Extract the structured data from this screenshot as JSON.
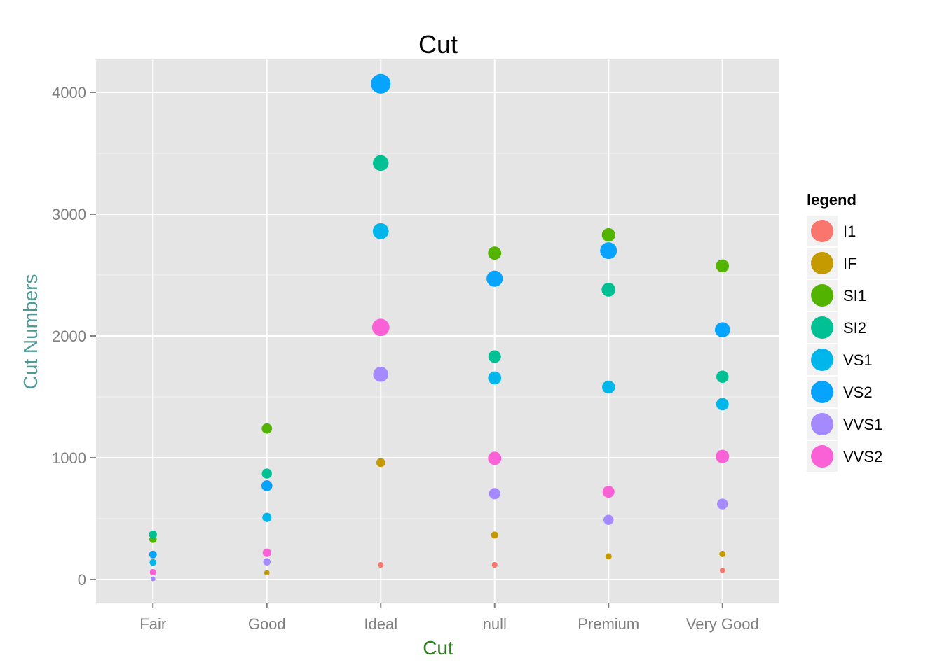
{
  "chart_data": {
    "type": "scatter",
    "title": "Cut",
    "xlabel": "Cut",
    "ylabel": "Cut Numbers",
    "categories": [
      "Fair",
      "Good",
      "Ideal",
      "null",
      "Premium",
      "Very Good"
    ],
    "yticks": [
      0,
      1000,
      2000,
      3000,
      4000
    ],
    "ylim": [
      -190,
      4270
    ],
    "grid": true,
    "legend": {
      "title": "legend",
      "position": "right"
    },
    "xlabel_color": "#2e7d1f",
    "ylabel_color": "#4f9a96",
    "panel_color": "#e5e5e5",
    "series": [
      {
        "name": "I1",
        "color": "#f8766d",
        "values": [
          5,
          55,
          120,
          120,
          190,
          75
        ]
      },
      {
        "name": "IF",
        "color": "#c49a00",
        "values": [
          5,
          55,
          960,
          365,
          190,
          210
        ]
      },
      {
        "name": "SI1",
        "color": "#53b400",
        "values": [
          330,
          1240,
          3420,
          2680,
          2830,
          2575
        ]
      },
      {
        "name": "SI2",
        "color": "#00c094",
        "values": [
          370,
          870,
          3420,
          1830,
          2380,
          1665
        ]
      },
      {
        "name": "VS1",
        "color": "#00b6eb",
        "values": [
          140,
          510,
          2860,
          1655,
          1580,
          1440
        ]
      },
      {
        "name": "VS2",
        "color": "#06a4ff",
        "values": [
          205,
          770,
          4070,
          2470,
          2700,
          2050
        ]
      },
      {
        "name": "VVS1",
        "color": "#a58aff",
        "values": [
          5,
          145,
          1685,
          705,
          490,
          620
        ]
      },
      {
        "name": "VVS2",
        "color": "#fb61d7",
        "values": [
          60,
          220,
          2070,
          995,
          720,
          1010
        ]
      }
    ]
  }
}
